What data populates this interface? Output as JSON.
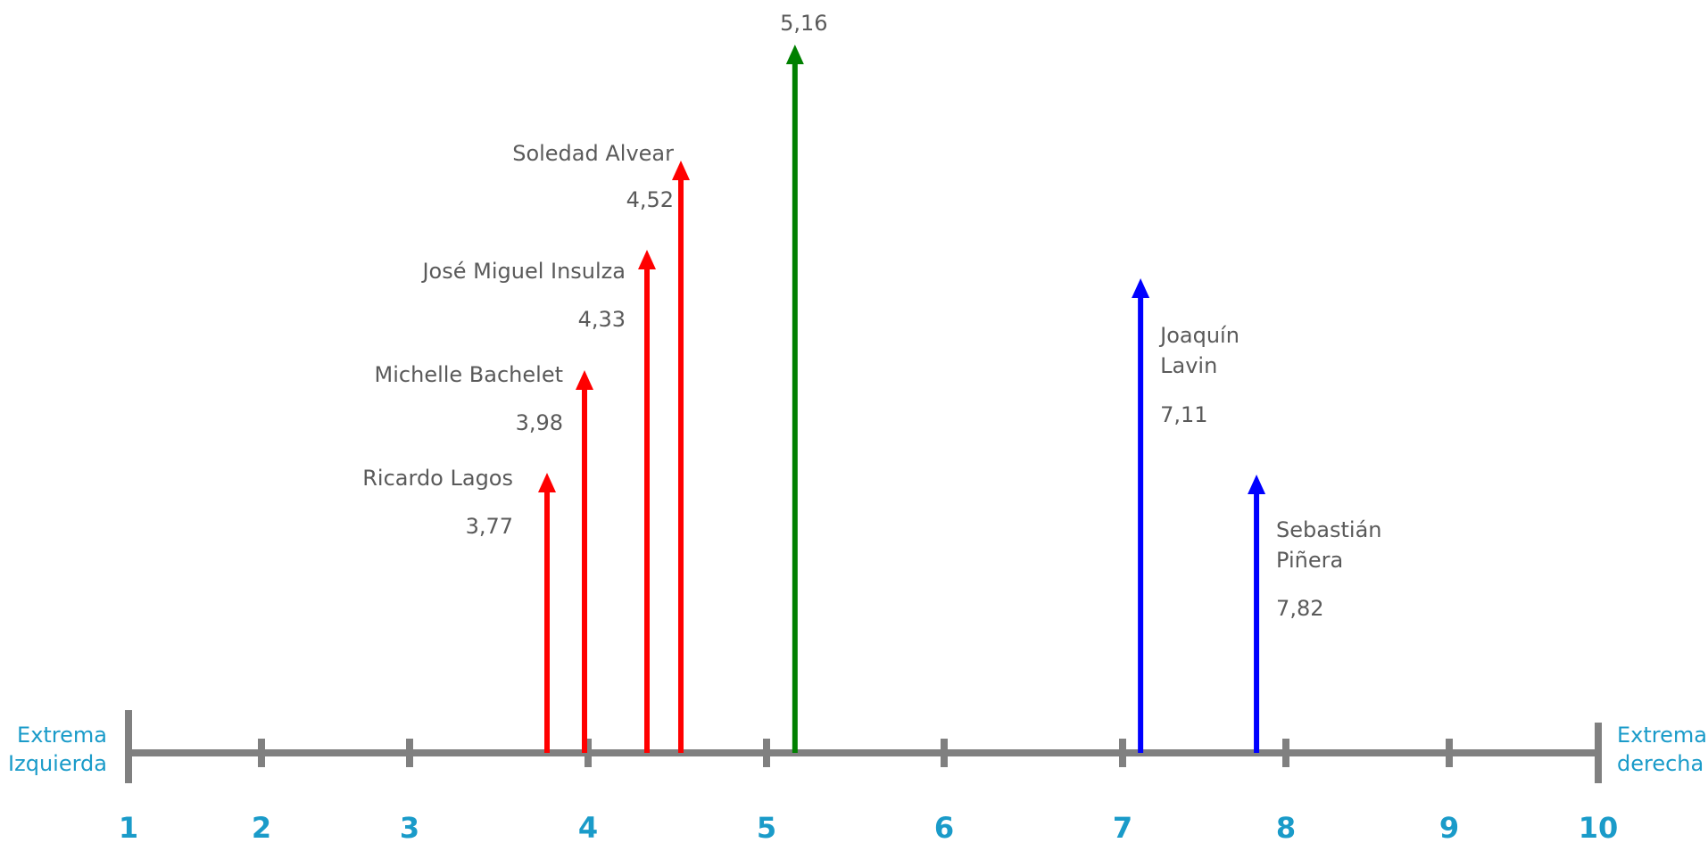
{
  "chart_data": {
    "type": "bar",
    "xlim": [
      1,
      10
    ],
    "ticks": [
      "1",
      "2",
      "3",
      "4",
      "5",
      "6",
      "7",
      "8",
      "9",
      "10"
    ],
    "left_end_label": [
      "Extrema",
      "Izquierda"
    ],
    "right_end_label": [
      "Extrema",
      "derecha"
    ],
    "colors": {
      "axis": "#808080",
      "tick_labels": "#1a9bc9",
      "left": "#ff0000",
      "center": "#008000",
      "right": "#0000ff",
      "text": "#5a5a5a"
    },
    "points": [
      {
        "name": [
          "Ricardo Lagos"
        ],
        "value": 3.77,
        "value_label": "3,77",
        "color": "#ff0000"
      },
      {
        "name": [
          "Michelle Bachelet"
        ],
        "value": 3.98,
        "value_label": "3,98",
        "color": "#ff0000"
      },
      {
        "name": [
          "José Miguel Insulza"
        ],
        "value": 4.33,
        "value_label": "4,33",
        "color": "#ff0000"
      },
      {
        "name": [
          "Soledad Alvear"
        ],
        "value": 4.52,
        "value_label": "4,52",
        "color": "#ff0000"
      },
      {
        "name": [],
        "value": 5.16,
        "value_label": "5,16",
        "color": "#008000"
      },
      {
        "name": [
          "Joaquín",
          "Lavin"
        ],
        "value": 7.11,
        "value_label": "7,11",
        "color": "#0000ff"
      },
      {
        "name": [
          "Sebastián",
          "Piñera"
        ],
        "value": 7.82,
        "value_label": "7,82",
        "color": "#0000ff"
      }
    ]
  }
}
